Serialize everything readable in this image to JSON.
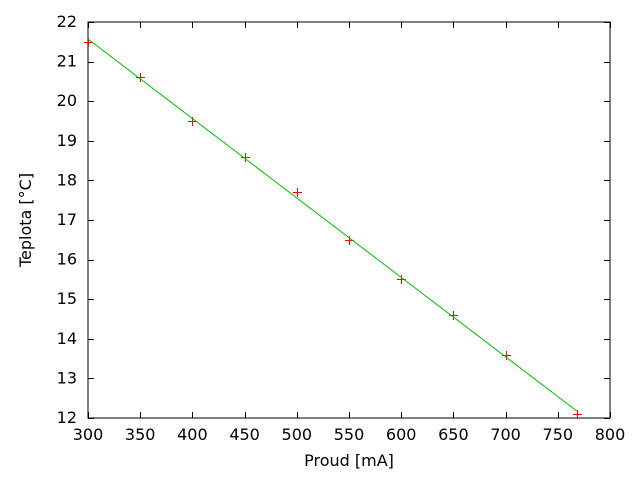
{
  "chart_data": {
    "type": "scatter",
    "title": "",
    "xlabel": "Proud [mA]",
    "ylabel": "Teplota [°C]",
    "xlim": [
      300,
      800
    ],
    "ylim": [
      12,
      22
    ],
    "xticks": [
      300,
      350,
      400,
      450,
      500,
      550,
      600,
      650,
      700,
      750,
      800
    ],
    "yticks": [
      12,
      13,
      14,
      15,
      16,
      17,
      18,
      19,
      20,
      21,
      22
    ],
    "grid": false,
    "legend": "none",
    "background_color": "#ffffff",
    "axis_color": "#000000",
    "series": [
      {
        "name": "measured-points",
        "type": "points",
        "marker": "plus",
        "color": "#ff0000",
        "x": [
          300,
          350,
          400,
          450,
          500,
          550,
          600,
          650,
          700,
          768
        ],
        "y": [
          21.5,
          20.6,
          19.5,
          18.6,
          17.7,
          16.5,
          15.5,
          14.6,
          13.6,
          12.1
        ]
      },
      {
        "name": "linear-fit-line",
        "type": "line",
        "color": "#00c000",
        "x": [
          300,
          768
        ],
        "y": [
          21.57,
          12.18
        ]
      }
    ]
  }
}
